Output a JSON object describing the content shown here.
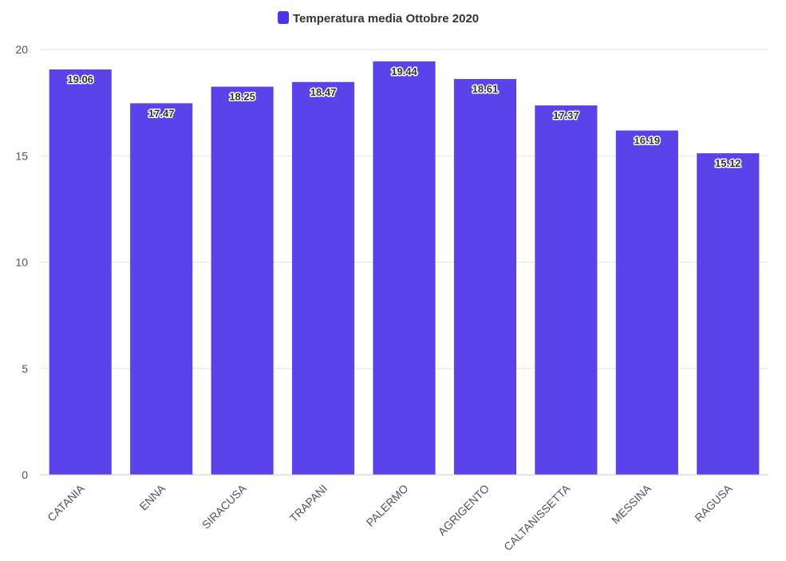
{
  "chart_data": {
    "type": "bar",
    "title": "",
    "legend": [
      {
        "name": "Temperatura media Ottobre 2020",
        "color": "#4a33e8"
      }
    ],
    "bar_color": "#5a43e8",
    "categories": [
      "CATANIA",
      "ENNA",
      "SIRACUSA",
      "TRAPANI",
      "PALERMO",
      "AGRIGENTO",
      "CALTANISSETTA",
      "MESSINA",
      "RAGUSA"
    ],
    "series": [
      {
        "name": "Temperatura media Ottobre 2020",
        "values": [
          19.06,
          17.47,
          18.25,
          18.47,
          19.44,
          18.61,
          17.37,
          16.19,
          15.12
        ],
        "labels": [
          "19.06",
          "17.47",
          "18.25",
          "18.47",
          "19.44",
          "18.61",
          "17.37",
          "16.19",
          "15.12"
        ]
      }
    ],
    "xlabel": "",
    "ylabel": "",
    "ylim": [
      0,
      20
    ],
    "yticks": [
      "0",
      "5",
      "10",
      "15",
      "20"
    ],
    "grid": true,
    "legend_position": "top-center"
  }
}
